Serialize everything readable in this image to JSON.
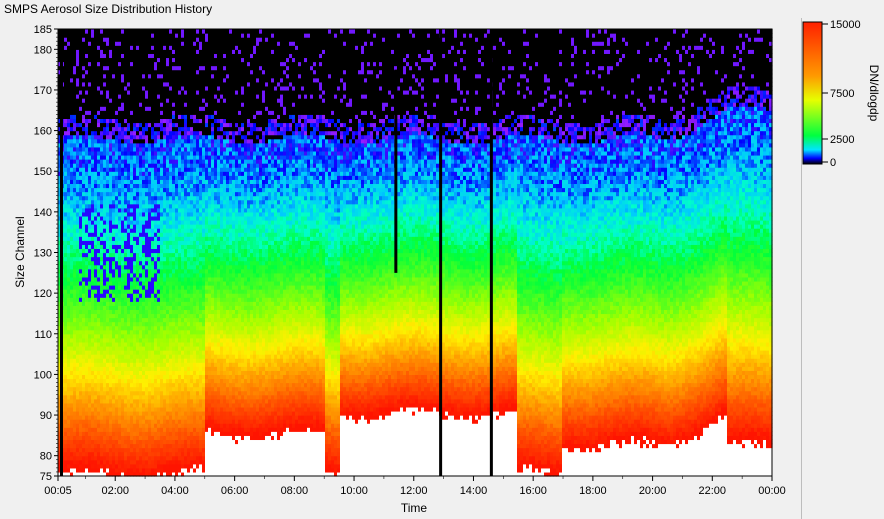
{
  "window": {
    "title": "SMPS Aerosol Size Distribution History"
  },
  "chart_data": {
    "type": "heatmap",
    "title": "SMPS Aerosol Size Distribution History",
    "xlabel": "Time",
    "ylabel": "Size Channel",
    "x_tick_labels": [
      "00:05",
      "02:00",
      "04:00",
      "06:00",
      "08:00",
      "10:00",
      "12:00",
      "14:00",
      "16:00",
      "18:00",
      "20:00",
      "22:00",
      "00:00"
    ],
    "x_tick_hours": [
      0.0833,
      2,
      4,
      6,
      8,
      10,
      12,
      14,
      16,
      18,
      20,
      22,
      24
    ],
    "y_ticks": [
      75,
      80,
      90,
      100,
      110,
      120,
      130,
      140,
      150,
      160,
      170,
      180,
      185
    ],
    "ylim": [
      75,
      185
    ],
    "xlim_hours": [
      0.0833,
      24
    ],
    "colorbar": {
      "label": "DN/dlogdp",
      "ticks": [
        15000,
        7500,
        2500,
        0
      ],
      "tick_labels": [
        "15000",
        "7500",
        "2500",
        "0"
      ],
      "range": [
        0,
        15000
      ]
    },
    "profile": {
      "description": "median color field by channel band",
      "bands": [
        {
          "channel_range": [
            75,
            95
          ],
          "dn_dlogdp_approx": 12000
        },
        {
          "channel_range": [
            95,
            110
          ],
          "dn_dlogdp_approx": 6500
        },
        {
          "channel_range": [
            110,
            125
          ],
          "dn_dlogdp_approx": 3200
        },
        {
          "channel_range": [
            125,
            155
          ],
          "dn_dlogdp_approx": 1500
        },
        {
          "channel_range": [
            155,
            165
          ],
          "dn_dlogdp_approx": 300
        },
        {
          "channel_range": [
            165,
            185
          ],
          "dn_dlogdp_approx": 0
        }
      ]
    },
    "gaps_hours": [
      0.2,
      11.4,
      12.9,
      14.6
    ],
    "grid": false,
    "legend": "right colorbar"
  }
}
